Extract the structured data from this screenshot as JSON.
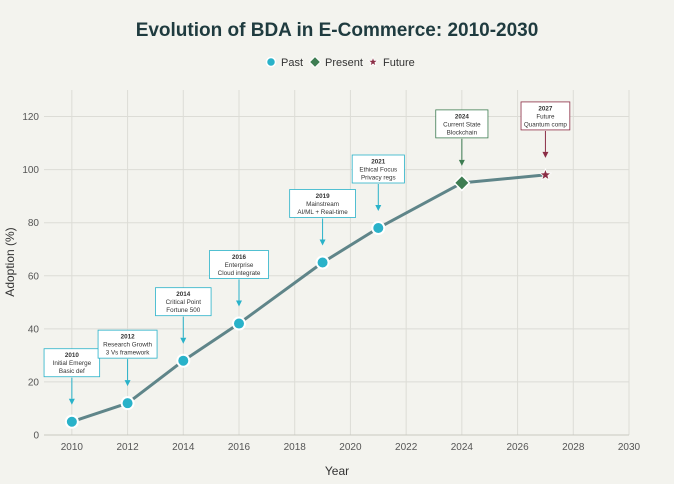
{
  "chart_data": {
    "type": "line",
    "title": "Evolution of BDA in E-Commerce: 2010-2030",
    "xlabel": "Year",
    "ylabel": "Adoption (%)",
    "xlim": [
      2009,
      2030
    ],
    "ylim": [
      0,
      130
    ],
    "x_ticks": [
      2010,
      2012,
      2014,
      2016,
      2018,
      2020,
      2022,
      2024,
      2026,
      2028,
      2030
    ],
    "y_ticks": [
      0,
      20,
      40,
      60,
      80,
      100,
      120
    ],
    "grid": true,
    "legend": {
      "position": "top-center",
      "entries": [
        {
          "name": "Past",
          "marker": "circle",
          "color": "#29b2c9"
        },
        {
          "name": "Present",
          "marker": "diamond",
          "color": "#3e7d52"
        },
        {
          "name": "Future",
          "marker": "star",
          "color": "#8b2d45"
        }
      ]
    },
    "line_color": "#5f8589",
    "points": [
      {
        "x": 2010,
        "y": 5,
        "phase": "Past"
      },
      {
        "x": 2012,
        "y": 12,
        "phase": "Past"
      },
      {
        "x": 2014,
        "y": 28,
        "phase": "Past"
      },
      {
        "x": 2016,
        "y": 42,
        "phase": "Past"
      },
      {
        "x": 2019,
        "y": 65,
        "phase": "Past"
      },
      {
        "x": 2021,
        "y": 78,
        "phase": "Past"
      },
      {
        "x": 2024,
        "y": 95,
        "phase": "Present"
      },
      {
        "x": 2027,
        "y": 98,
        "phase": "Future"
      }
    ],
    "annotations": [
      {
        "year": "2010",
        "lines": [
          "Initial Emerge",
          "Basic def"
        ],
        "phase": "Past"
      },
      {
        "year": "2012",
        "lines": [
          "Research Growth",
          "3 Vs framework"
        ],
        "phase": "Past"
      },
      {
        "year": "2014",
        "lines": [
          "Critical Point",
          "Fortune 500"
        ],
        "phase": "Past"
      },
      {
        "year": "2016",
        "lines": [
          "Enterprise",
          "Cloud integrate"
        ],
        "phase": "Past"
      },
      {
        "year": "2019",
        "lines": [
          "Mainstream",
          "AI/ML + Real-time"
        ],
        "phase": "Past"
      },
      {
        "year": "2021",
        "lines": [
          "Ethical Focus",
          "Privacy regs"
        ],
        "phase": "Past"
      },
      {
        "year": "2024",
        "lines": [
          "Current State",
          "Blockchain"
        ],
        "phase": "Present"
      },
      {
        "year": "2027",
        "lines": [
          "Future",
          "Quantum comp"
        ],
        "phase": "Future"
      }
    ],
    "colors": {
      "Past": "#29b2c9",
      "Present": "#3e7d52",
      "Future": "#8b2d45"
    }
  }
}
